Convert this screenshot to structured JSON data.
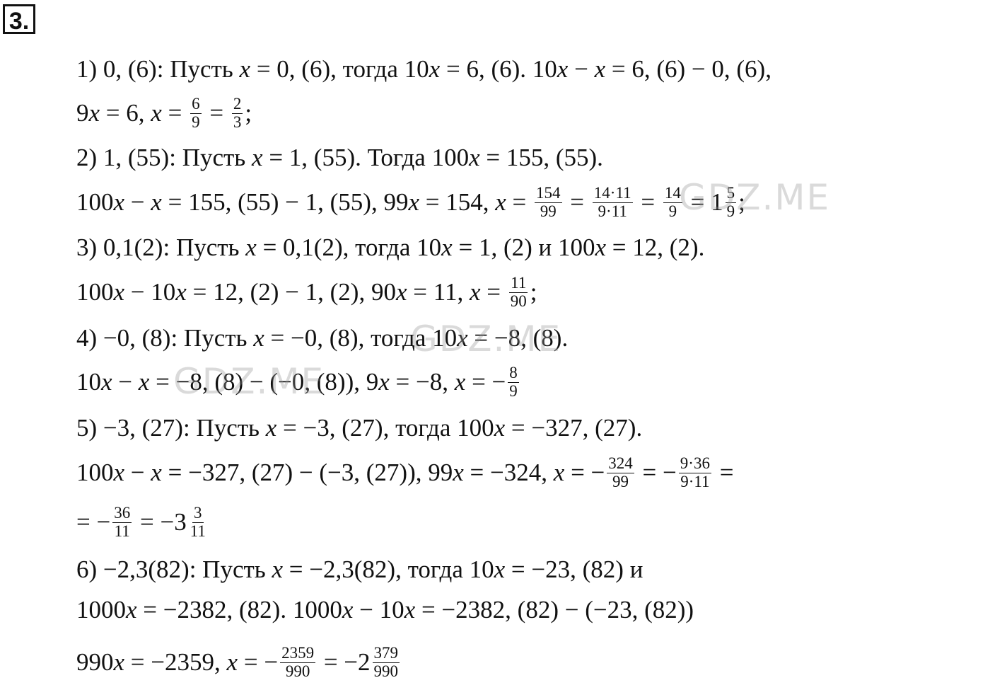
{
  "header": {
    "number": "3."
  },
  "lines": [
    [
      "1) 0, (6): Пусть x = 0, (6), тогда 10x = 6, (6). 10x − x = 6, (6) − 0, (6),"
    ],
    [
      "9x = 6, x = ",
      {
        "num": "6",
        "den": "9"
      },
      " = ",
      {
        "num": "2",
        "den": "3"
      },
      ";"
    ],
    [
      "2) 1, (55): Пусть x = 1, (55). Тогда 100x = 155, (55)."
    ],
    [
      "100x − x = 155, (55) − 1, (55), 99x = 154, x = ",
      {
        "num": "154",
        "den": "99"
      },
      " = ",
      {
        "num": "14·11",
        "den": "9·11"
      },
      " = ",
      {
        "num": "14",
        "den": "9"
      },
      " = 1",
      {
        "num": "5",
        "den": "9"
      },
      ";"
    ],
    [
      "3) 0,1(2): Пусть x = 0,1(2), тогда 10x = 1, (2) и 100x = 12, (2)."
    ],
    [
      "100x − 10x = 12, (2) − 1, (2), 90x = 11, x = ",
      {
        "num": "11",
        "den": "90"
      },
      ";"
    ],
    [
      "4) −0, (8): Пусть x = −0, (8), тогда 10x = −8, (8)."
    ],
    [
      "10x − x = −8, (8) − (−0, (8)), 9x = −8, x = −",
      {
        "num": "8",
        "den": "9"
      }
    ],
    [
      "5) −3, (27): Пусть x = −3, (27), тогда 100x = −327, (27)."
    ],
    [
      "100x − x = −327, (27) − (−3, (27)), 99x = −324, x = −",
      {
        "num": "324",
        "den": "99"
      },
      " = −",
      {
        "num": "9·36",
        "den": "9·11"
      },
      " ="
    ],
    [
      "= −",
      {
        "num": "36",
        "den": "11"
      },
      " = −3",
      {
        "num": "3",
        "den": "11"
      }
    ],
    [
      "6) −2,3(82): Пусть x = −2,3(82), тогда 10x = −23, (82) и"
    ],
    [
      "1000x = −2382, (82). 1000x − 10x = −2382, (82) − (−23, (82))"
    ],
    [
      "990x = −2359, x = −",
      {
        "num": "2359",
        "den": "990"
      },
      " = −2",
      {
        "num": "379",
        "den": "990"
      }
    ]
  ],
  "watermarks": [
    "GDZ.ME",
    "GDZ.ME",
    "GDZ.ME"
  ]
}
